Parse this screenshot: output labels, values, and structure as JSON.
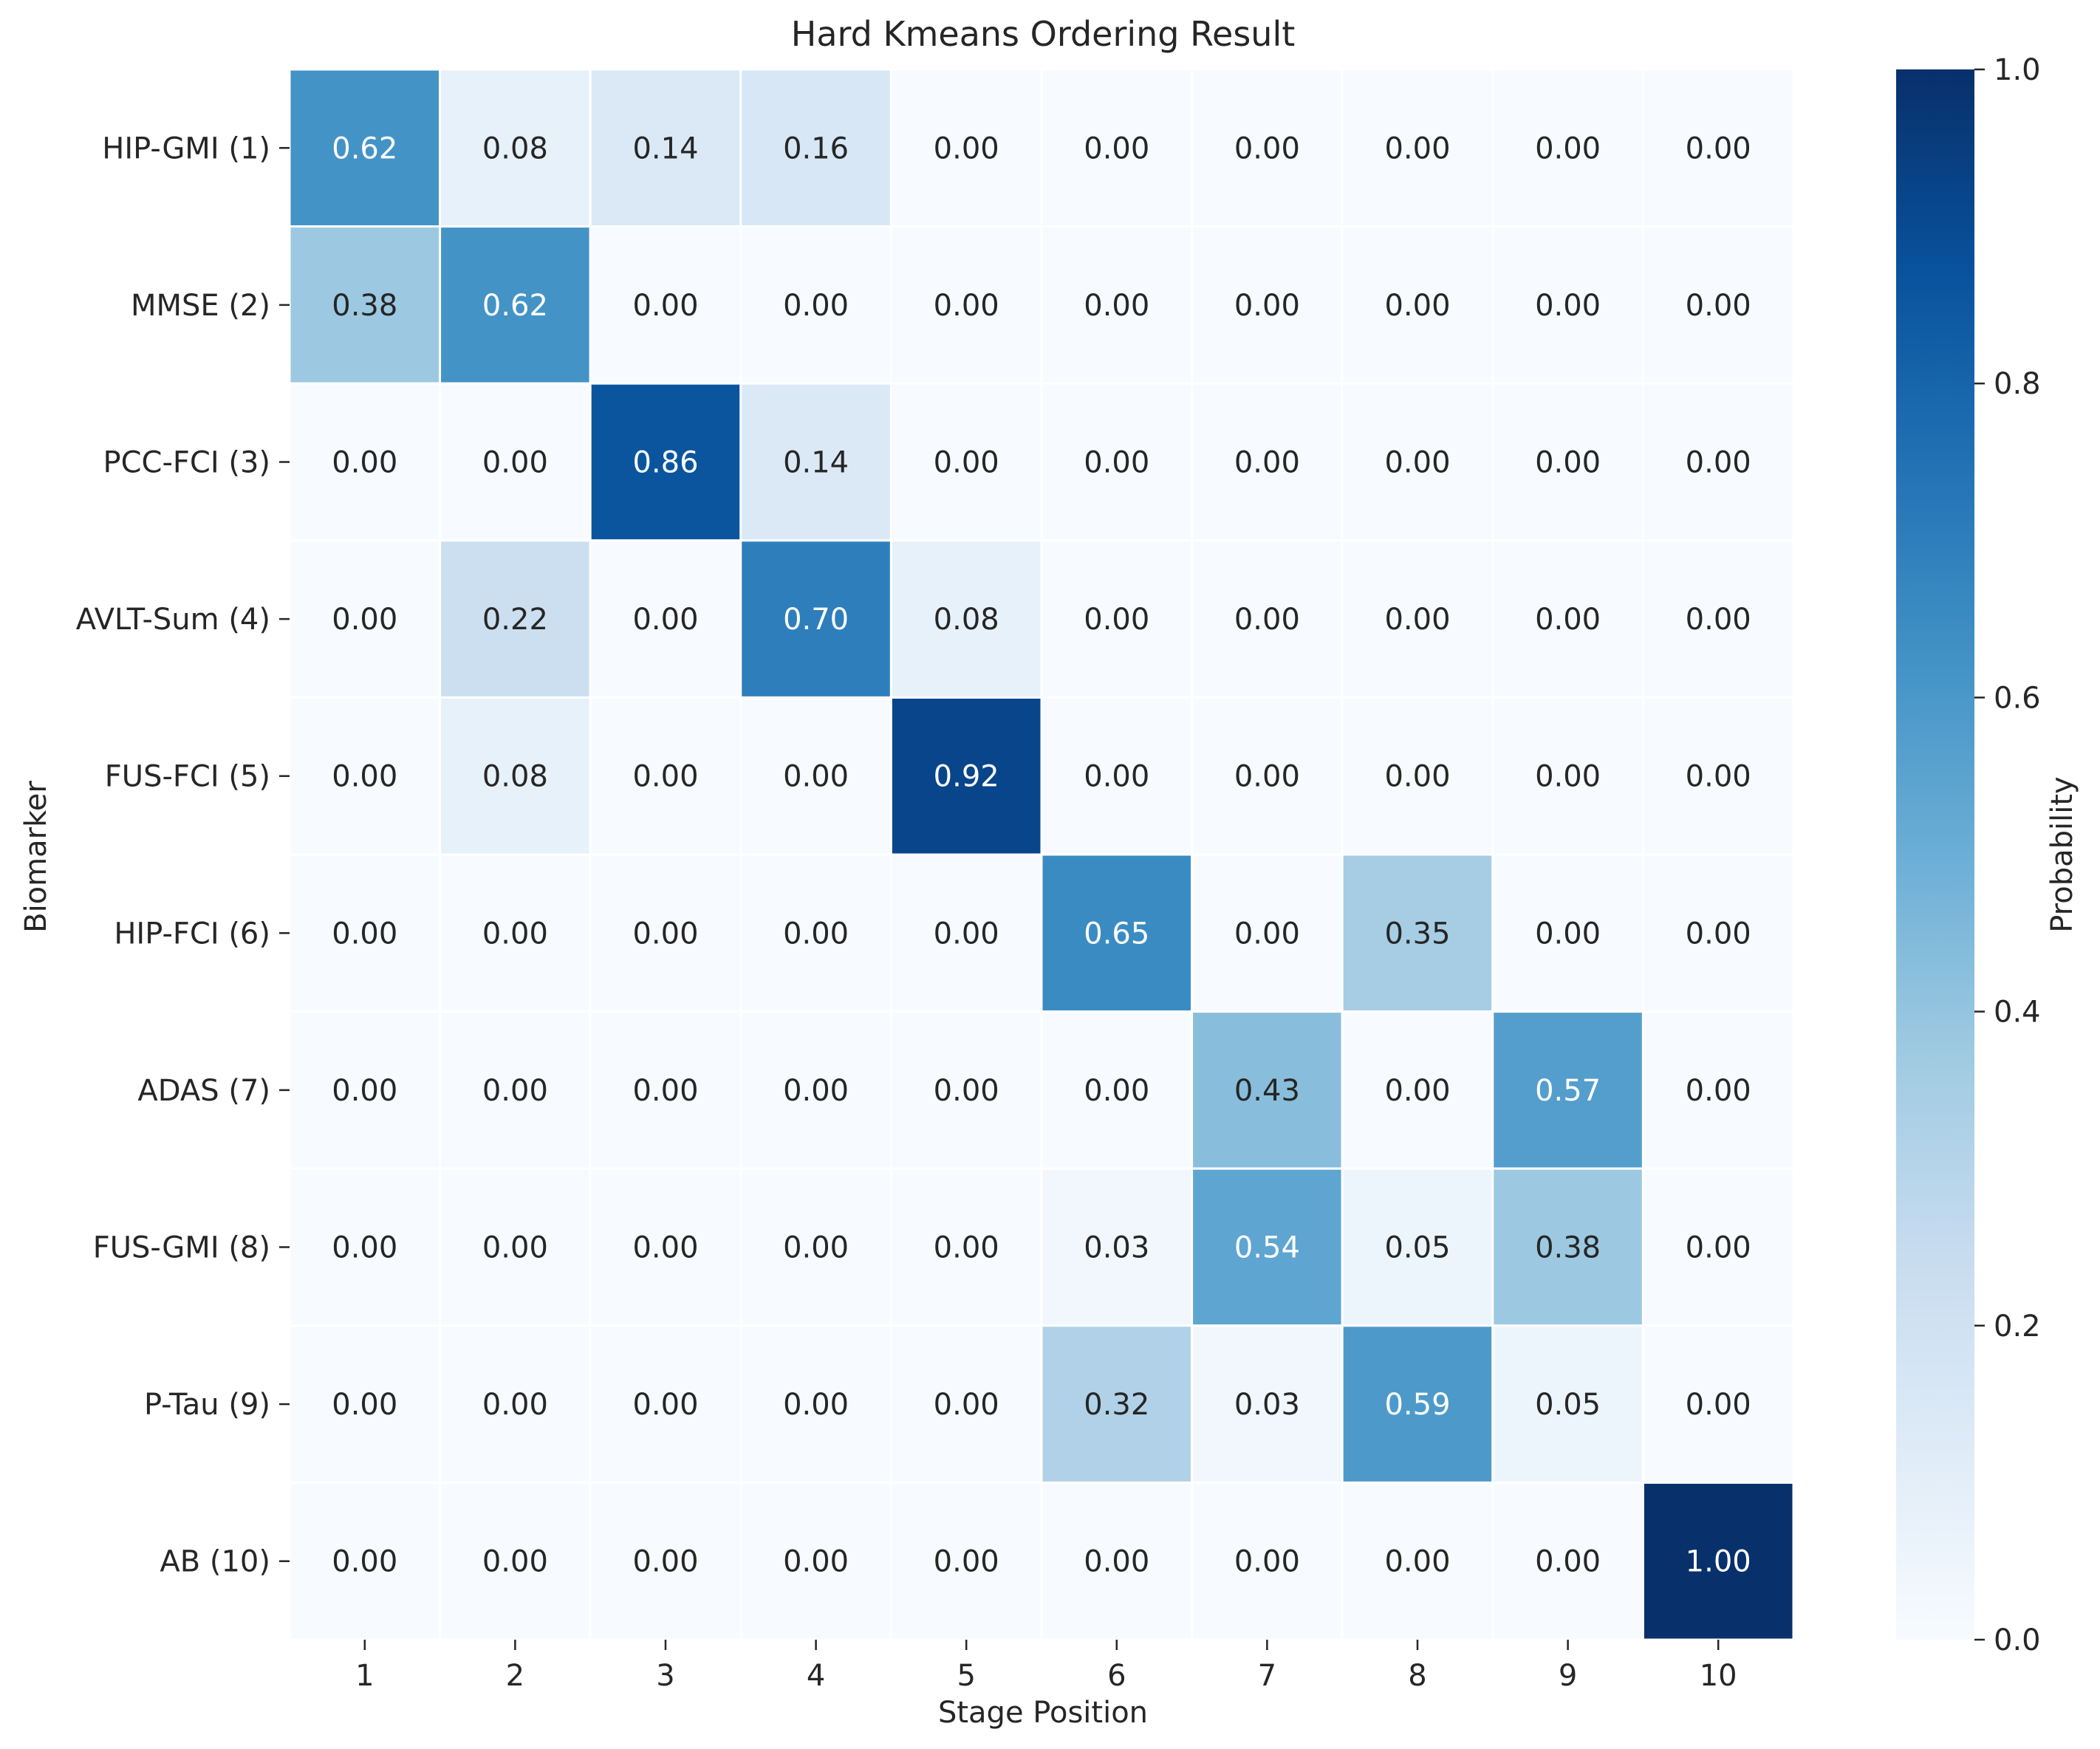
{
  "chart_data": {
    "type": "heatmap",
    "title": "Hard Kmeans Ordering Result",
    "xlabel": "Stage Position",
    "ylabel": "Biomarker",
    "colorbar_label": "Probability",
    "colormap": "Blues",
    "vmin": 0.0,
    "vmax": 1.0,
    "colorbar_ticks": [
      "0.0",
      "0.2",
      "0.4",
      "0.6",
      "0.8",
      "1.0"
    ],
    "x_categories": [
      "1",
      "2",
      "3",
      "4",
      "5",
      "6",
      "7",
      "8",
      "9",
      "10"
    ],
    "y_categories": [
      "HIP-GMI (1)",
      "MMSE (2)",
      "PCC-FCI (3)",
      "AVLT-Sum (4)",
      "FUS-FCI (5)",
      "HIP-FCI (6)",
      "ADAS (7)",
      "FUS-GMI (8)",
      "P-Tau (9)",
      "AB (10)"
    ],
    "values": [
      [
        0.62,
        0.08,
        0.14,
        0.16,
        0.0,
        0.0,
        0.0,
        0.0,
        0.0,
        0.0
      ],
      [
        0.38,
        0.62,
        0.0,
        0.0,
        0.0,
        0.0,
        0.0,
        0.0,
        0.0,
        0.0
      ],
      [
        0.0,
        0.0,
        0.86,
        0.14,
        0.0,
        0.0,
        0.0,
        0.0,
        0.0,
        0.0
      ],
      [
        0.0,
        0.22,
        0.0,
        0.7,
        0.08,
        0.0,
        0.0,
        0.0,
        0.0,
        0.0
      ],
      [
        0.0,
        0.08,
        0.0,
        0.0,
        0.92,
        0.0,
        0.0,
        0.0,
        0.0,
        0.0
      ],
      [
        0.0,
        0.0,
        0.0,
        0.0,
        0.0,
        0.65,
        0.0,
        0.35,
        0.0,
        0.0
      ],
      [
        0.0,
        0.0,
        0.0,
        0.0,
        0.0,
        0.0,
        0.43,
        0.0,
        0.57,
        0.0
      ],
      [
        0.0,
        0.0,
        0.0,
        0.0,
        0.0,
        0.03,
        0.54,
        0.05,
        0.38,
        0.0
      ],
      [
        0.0,
        0.0,
        0.0,
        0.0,
        0.0,
        0.32,
        0.03,
        0.59,
        0.05,
        0.0
      ],
      [
        0.0,
        0.0,
        0.0,
        0.0,
        0.0,
        0.0,
        0.0,
        0.0,
        0.0,
        1.0
      ]
    ]
  }
}
